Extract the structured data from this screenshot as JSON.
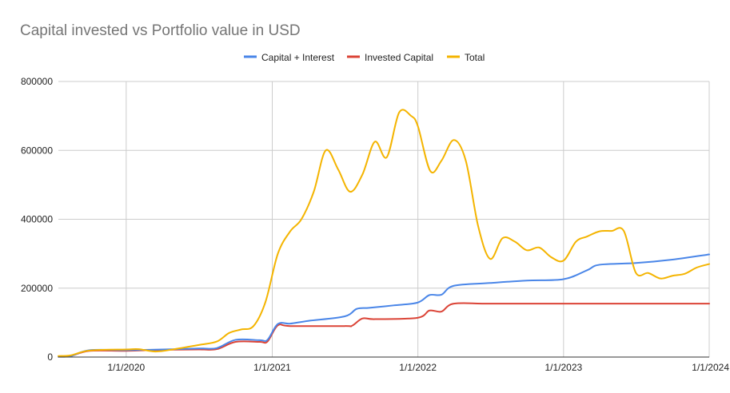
{
  "chart_data": {
    "type": "line",
    "title": "Capital invested vs Portfolio value in USD",
    "xlabel": "",
    "ylabel": "",
    "ylim": [
      0,
      800000
    ],
    "xlim": [
      "2019-07-15",
      "2024-01-01"
    ],
    "y_ticks": [
      "0",
      "200000",
      "400000",
      "600000",
      "800000"
    ],
    "x_ticks": [
      {
        "date": "2020-01-01",
        "label": "1/1/2020"
      },
      {
        "date": "2021-01-01",
        "label": "1/1/2021"
      },
      {
        "date": "2022-01-01",
        "label": "1/1/2022"
      },
      {
        "date": "2023-01-01",
        "label": "1/1/2023"
      },
      {
        "date": "2024-01-01",
        "label": "1/1/2024"
      }
    ],
    "grid": true,
    "legend_position": "top",
    "colors": {
      "capital_interest": "#4a86e8",
      "invested_capital": "#db4437",
      "total": "#f4b400"
    },
    "series": [
      {
        "name": "Capital + Interest",
        "color": "#4a86e8",
        "points": [
          [
            "2019-07-15",
            1000
          ],
          [
            "2019-08-15",
            3000
          ],
          [
            "2019-10-01",
            20000
          ],
          [
            "2020-01-01",
            20000
          ],
          [
            "2020-04-01",
            22000
          ],
          [
            "2020-07-01",
            25000
          ],
          [
            "2020-08-15",
            26000
          ],
          [
            "2020-10-01",
            50000
          ],
          [
            "2020-12-01",
            49000
          ],
          [
            "2020-12-20",
            50000
          ],
          [
            "2021-01-15",
            96000
          ],
          [
            "2021-02-15",
            97000
          ],
          [
            "2021-04-01",
            105000
          ],
          [
            "2021-07-01",
            118000
          ],
          [
            "2021-08-01",
            140000
          ],
          [
            "2021-09-01",
            143000
          ],
          [
            "2021-11-01",
            150000
          ],
          [
            "2021-12-31",
            158000
          ],
          [
            "2022-01-30",
            180000
          ],
          [
            "2022-03-01",
            181000
          ],
          [
            "2022-04-01",
            207000
          ],
          [
            "2022-07-01",
            215000
          ],
          [
            "2022-10-01",
            222000
          ],
          [
            "2023-01-01",
            226000
          ],
          [
            "2023-03-01",
            252000
          ],
          [
            "2023-04-01",
            268000
          ],
          [
            "2023-07-01",
            273000
          ],
          [
            "2023-10-01",
            283000
          ],
          [
            "2024-01-01",
            298000
          ]
        ]
      },
      {
        "name": "Invested Capital",
        "color": "#db4437",
        "points": [
          [
            "2019-07-15",
            1000
          ],
          [
            "2019-08-15",
            3000
          ],
          [
            "2019-10-01",
            18000
          ],
          [
            "2020-01-01",
            18000
          ],
          [
            "2020-04-01",
            21000
          ],
          [
            "2020-07-01",
            22000
          ],
          [
            "2020-08-15",
            23000
          ],
          [
            "2020-10-01",
            44000
          ],
          [
            "2020-12-01",
            44000
          ],
          [
            "2020-12-20",
            45000
          ],
          [
            "2021-01-15",
            92000
          ],
          [
            "2021-02-15",
            90000
          ],
          [
            "2021-07-01",
            90000
          ],
          [
            "2021-07-20",
            91000
          ],
          [
            "2021-08-15",
            112000
          ],
          [
            "2021-09-15",
            110000
          ],
          [
            "2021-12-31",
            114000
          ],
          [
            "2022-01-30",
            135000
          ],
          [
            "2022-03-01",
            132000
          ],
          [
            "2022-04-01",
            155000
          ],
          [
            "2022-07-01",
            155000
          ],
          [
            "2023-01-01",
            155000
          ],
          [
            "2023-07-01",
            155000
          ],
          [
            "2024-01-01",
            155000
          ]
        ]
      },
      {
        "name": "Total",
        "color": "#f4b400",
        "points": [
          [
            "2019-07-15",
            3000
          ],
          [
            "2019-08-15",
            5000
          ],
          [
            "2019-10-01",
            19000
          ],
          [
            "2020-01-01",
            22000
          ],
          [
            "2020-02-01",
            23000
          ],
          [
            "2020-03-15",
            16000
          ],
          [
            "2020-05-01",
            23000
          ],
          [
            "2020-07-01",
            35000
          ],
          [
            "2020-08-15",
            45000
          ],
          [
            "2020-09-15",
            70000
          ],
          [
            "2020-10-15",
            80000
          ],
          [
            "2020-11-15",
            90000
          ],
          [
            "2020-12-15",
            160000
          ],
          [
            "2021-01-15",
            300000
          ],
          [
            "2021-02-15",
            365000
          ],
          [
            "2021-03-15",
            400000
          ],
          [
            "2021-04-15",
            480000
          ],
          [
            "2021-05-15",
            600000
          ],
          [
            "2021-06-15",
            545000
          ],
          [
            "2021-07-15",
            480000
          ],
          [
            "2021-08-15",
            530000
          ],
          [
            "2021-09-15",
            625000
          ],
          [
            "2021-10-15",
            580000
          ],
          [
            "2021-11-15",
            710000
          ],
          [
            "2021-12-15",
            700000
          ],
          [
            "2022-01-01",
            670000
          ],
          [
            "2022-02-01",
            540000
          ],
          [
            "2022-03-01",
            570000
          ],
          [
            "2022-04-01",
            630000
          ],
          [
            "2022-05-01",
            570000
          ],
          [
            "2022-06-01",
            380000
          ],
          [
            "2022-07-01",
            285000
          ],
          [
            "2022-08-01",
            345000
          ],
          [
            "2022-09-01",
            335000
          ],
          [
            "2022-10-01",
            310000
          ],
          [
            "2022-11-01",
            318000
          ],
          [
            "2022-12-01",
            290000
          ],
          [
            "2023-01-01",
            280000
          ],
          [
            "2023-02-01",
            335000
          ],
          [
            "2023-03-01",
            350000
          ],
          [
            "2023-04-01",
            365000
          ],
          [
            "2023-05-01",
            366000
          ],
          [
            "2023-06-01",
            366000
          ],
          [
            "2023-07-01",
            245000
          ],
          [
            "2023-08-01",
            244000
          ],
          [
            "2023-09-01",
            228000
          ],
          [
            "2023-10-01",
            236000
          ],
          [
            "2023-11-01",
            242000
          ],
          [
            "2023-12-01",
            260000
          ],
          [
            "2024-01-01",
            270000
          ]
        ]
      }
    ]
  }
}
